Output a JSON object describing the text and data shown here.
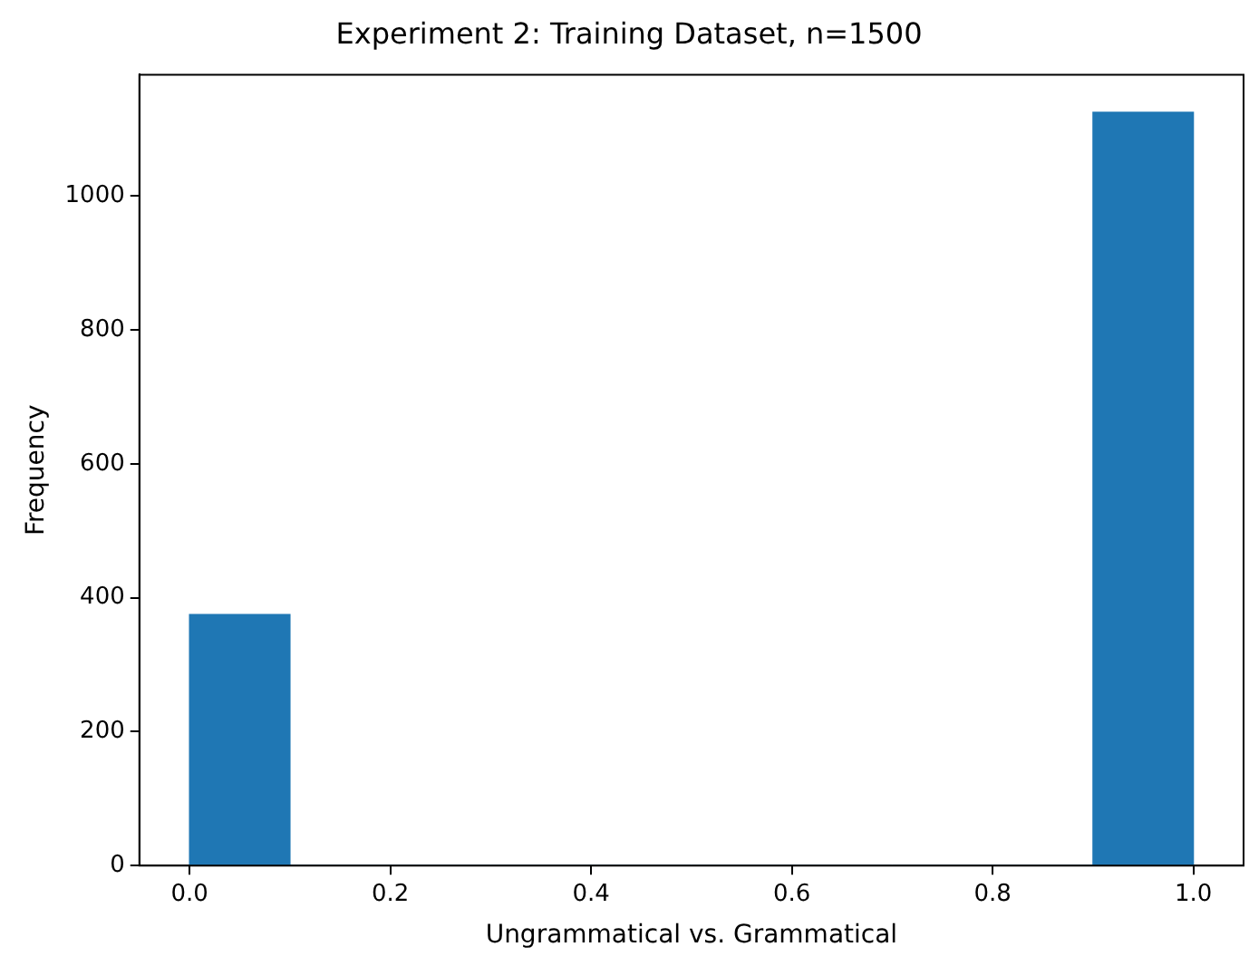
{
  "chart_data": {
    "type": "histogram",
    "title": "Experiment 2: Training Dataset, n=1500",
    "xlabel": "Ungrammatical vs. Grammatical",
    "ylabel": "Frequency",
    "bins": [
      0,
      0.1,
      0.2,
      0.3,
      0.4,
      0.5,
      0.6,
      0.7,
      0.8,
      0.9,
      1.0
    ],
    "values": [
      375,
      0,
      0,
      0,
      0,
      0,
      0,
      0,
      0,
      1125
    ],
    "color": "#1f77b4",
    "xlim": [
      -0.05,
      1.05
    ],
    "xticks": [
      {
        "value": 0,
        "label": "0.0"
      },
      {
        "value": 0.2,
        "label": "0.2"
      },
      {
        "value": 0.4,
        "label": "0.4"
      },
      {
        "value": 0.6,
        "label": "0.6"
      },
      {
        "value": 0.8,
        "label": "0.8"
      },
      {
        "value": 1,
        "label": "1.0"
      }
    ],
    "ylim": [
      0,
      1181.25
    ],
    "yticks": [
      0,
      200,
      400,
      600,
      800,
      1000
    ],
    "grid": false,
    "legend": false
  }
}
